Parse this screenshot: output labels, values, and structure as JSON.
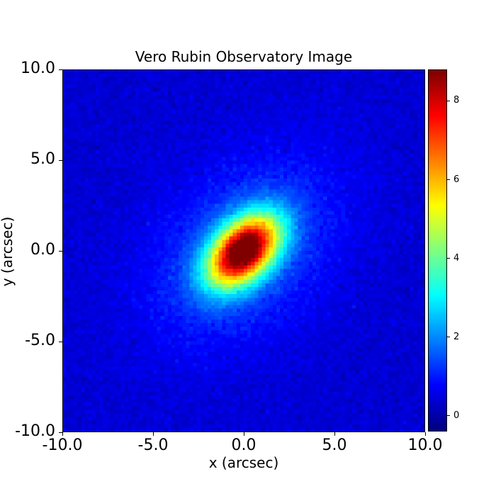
{
  "chart_data": {
    "type": "heatmap",
    "title": "Vero Rubin Observatory Image",
    "xlabel": "x (arcsec)",
    "ylabel": "y (arcsec)",
    "xlim": [
      -10.0,
      10.0
    ],
    "ylim": [
      -10.0,
      10.0
    ],
    "xticks": [
      "-10.0",
      "-5.0",
      "0.0",
      "5.0",
      "10.0"
    ],
    "yticks": [
      "10.0",
      "5.0",
      "0.0",
      "-5.0",
      "-10.0"
    ],
    "colormap": "jet",
    "colorbar": {
      "range": [
        -0.4,
        8.8
      ],
      "ticks": [
        "8",
        "6",
        "4",
        "2",
        "0"
      ]
    },
    "source": {
      "center": [
        0.0,
        0.0
      ],
      "peak": 8.5,
      "major_axis_sigma": 1.6,
      "minor_axis_sigma": 1.0,
      "position_angle_deg": 45,
      "halo_amplitude": 1.3,
      "halo_sigma": 4.0,
      "background": 0.35,
      "noise": 0.12
    },
    "grid": false
  }
}
